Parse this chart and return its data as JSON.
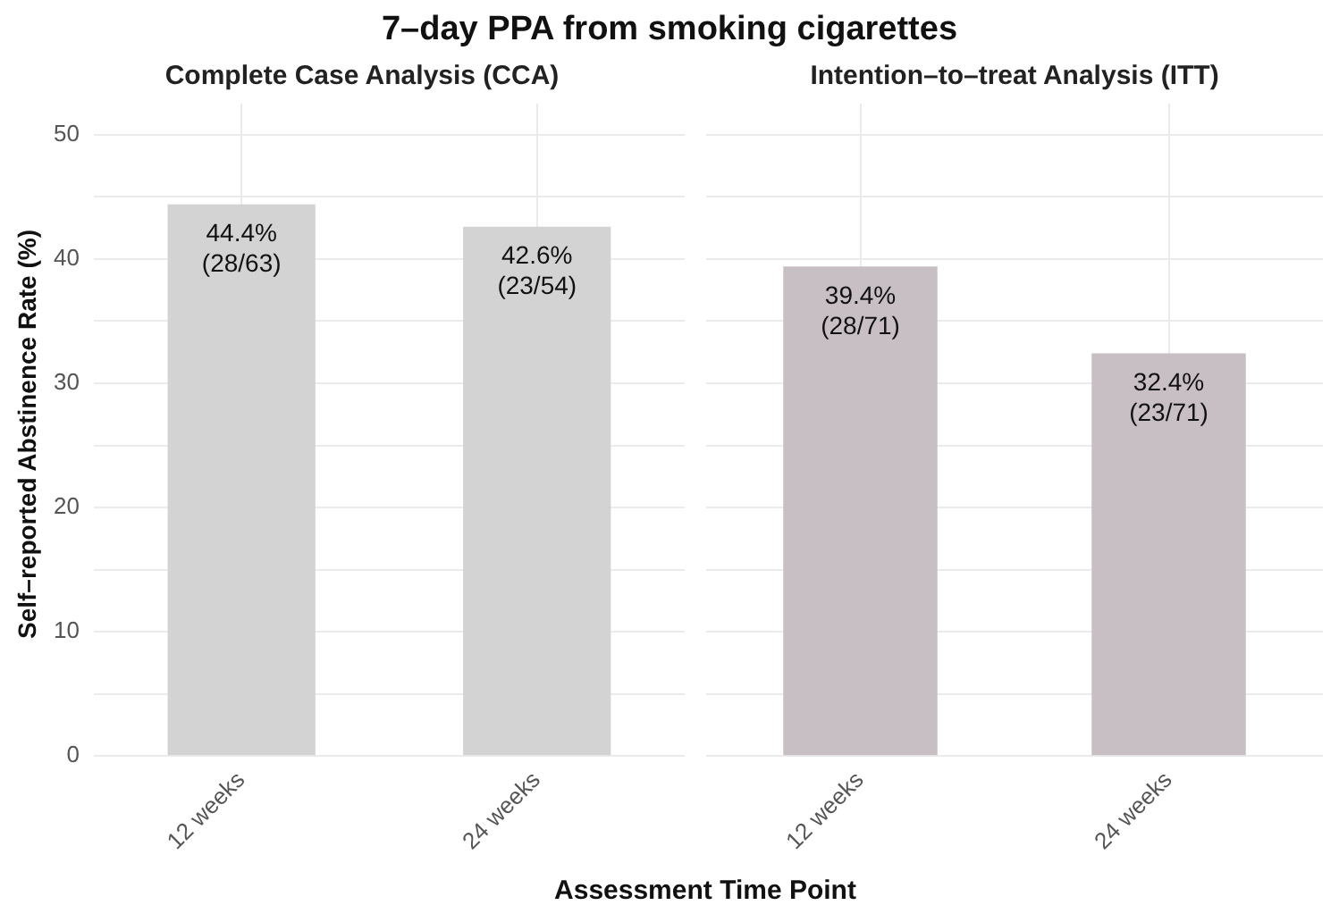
{
  "chart_data": [
    {
      "type": "bar",
      "title": "7–day PPA from smoking cigarettes",
      "subtitle": "Complete Case Analysis (CCA)",
      "xlabel": "Assessment Time Point",
      "ylabel": "Self–reported Abstinence Rate (%)",
      "categories": [
        "12 weeks",
        "24 weeks"
      ],
      "values": [
        44.4,
        42.6
      ],
      "value_labels": [
        "44.4%\n(28/63)",
        "42.6%\n(23/54)"
      ],
      "color": "#d3d3d3",
      "ylim": [
        0,
        52.5
      ],
      "yticks": [
        0,
        {
          "value": 5,
          "label": null
        },
        10,
        {
          "value": 15,
          "label": null
        },
        20,
        {
          "value": 25,
          "label": null
        },
        30,
        {
          "value": 35,
          "label": null
        },
        40,
        {
          "value": 45,
          "label": null
        },
        50
      ],
      "grid": true
    },
    {
      "type": "bar",
      "subtitle": "Intention–to–treat Analysis (ITT)",
      "categories": [
        "12 weeks",
        "24 weeks"
      ],
      "values": [
        39.4,
        32.4
      ],
      "value_labels": [
        "39.4%\n(28/71)",
        "32.4%\n(23/71)"
      ],
      "color": "#c8bfc4",
      "ylim": [
        0,
        52.5
      ],
      "yticks": [
        0,
        {
          "value": 5,
          "label": null
        },
        10,
        {
          "value": 15,
          "label": null
        },
        20,
        {
          "value": 25,
          "label": null
        },
        30,
        {
          "value": 35,
          "label": null
        },
        40,
        {
          "value": 45,
          "label": null
        },
        50
      ],
      "grid": true,
      "tick_labels": "x"
    }
  ]
}
